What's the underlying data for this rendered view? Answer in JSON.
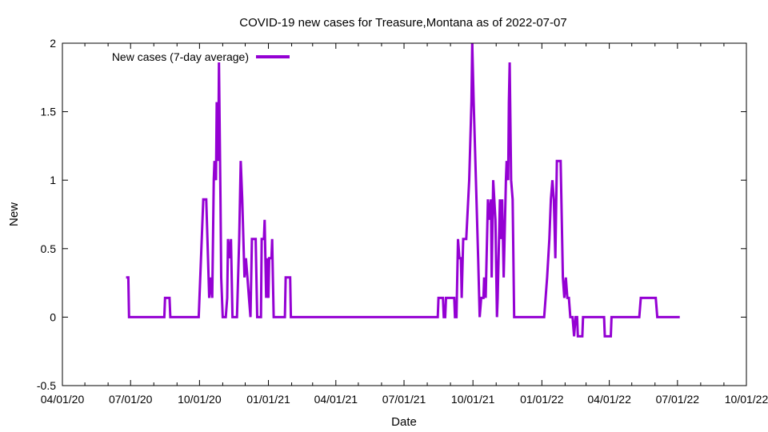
{
  "chart_data": {
    "type": "line",
    "title": "COVID-19 new cases for Treasure,Montana as of 2022-07-07",
    "xlabel": "Date",
    "ylabel": "New",
    "ylim": [
      -0.5,
      2
    ],
    "xlim": [
      "2020-04-01",
      "2022-10-01"
    ],
    "y_ticks": [
      -0.5,
      0,
      0.5,
      1,
      1.5,
      2
    ],
    "y_tick_labels": [
      "-0.5",
      "0",
      "0.5",
      "1",
      "1.5",
      "2"
    ],
    "x_ticks": [
      "2020-04-01",
      "2020-07-01",
      "2020-10-01",
      "2021-01-01",
      "2021-04-01",
      "2021-07-01",
      "2021-10-01",
      "2022-01-01",
      "2022-04-01",
      "2022-07-01",
      "2022-10-01"
    ],
    "x_tick_labels": [
      "04/01/20",
      "07/01/20",
      "10/01/20",
      "01/01/21",
      "04/01/21",
      "07/01/21",
      "10/01/21",
      "01/01/22",
      "04/01/22",
      "07/01/22",
      "10/01/22"
    ],
    "grid": false,
    "legend": {
      "position": "top-left"
    },
    "series": [
      {
        "name": "New cases (7-day average)",
        "color": "#9400d3",
        "points": [
          [
            "2020-06-25",
            0.29
          ],
          [
            "2020-06-28",
            0.29
          ],
          [
            "2020-06-29",
            0
          ],
          [
            "2020-08-15",
            0
          ],
          [
            "2020-08-16",
            0.14
          ],
          [
            "2020-08-22",
            0.14
          ],
          [
            "2020-08-23",
            0
          ],
          [
            "2020-09-30",
            0
          ],
          [
            "2020-10-06",
            0.86
          ],
          [
            "2020-10-10",
            0.86
          ],
          [
            "2020-10-14",
            0.14
          ],
          [
            "2020-10-16",
            0.29
          ],
          [
            "2020-10-18",
            0.14
          ],
          [
            "2020-10-20",
            1.0
          ],
          [
            "2020-10-21",
            1.14
          ],
          [
            "2020-10-23",
            1.0
          ],
          [
            "2020-10-24",
            1.57
          ],
          [
            "2020-10-26",
            1.14
          ],
          [
            "2020-10-27",
            1.86
          ],
          [
            "2020-10-29",
            0.86
          ],
          [
            "2020-10-30",
            0.29
          ],
          [
            "2020-11-01",
            0
          ],
          [
            "2020-11-05",
            0
          ],
          [
            "2020-11-07",
            0.14
          ],
          [
            "2020-11-08",
            0.57
          ],
          [
            "2020-11-11",
            0.43
          ],
          [
            "2020-11-12",
            0.57
          ],
          [
            "2020-11-14",
            0
          ],
          [
            "2020-11-20",
            0
          ],
          [
            "2020-11-23",
            0.57
          ],
          [
            "2020-11-25",
            1.14
          ],
          [
            "2020-11-27",
            0.86
          ],
          [
            "2020-11-30",
            0.29
          ],
          [
            "2020-12-02",
            0.43
          ],
          [
            "2020-12-04",
            0.29
          ],
          [
            "2020-12-06",
            0.14
          ],
          [
            "2020-12-08",
            0
          ],
          [
            "2020-12-10",
            0.57
          ],
          [
            "2020-12-15",
            0.57
          ],
          [
            "2020-12-17",
            0
          ],
          [
            "2020-12-22",
            0
          ],
          [
            "2020-12-23",
            0.57
          ],
          [
            "2020-12-26",
            0.57
          ],
          [
            "2020-12-27",
            0.71
          ],
          [
            "2020-12-29",
            0.14
          ],
          [
            "2020-12-30",
            0.43
          ],
          [
            "2021-01-01",
            0.14
          ],
          [
            "2021-01-02",
            0.43
          ],
          [
            "2021-01-05",
            0.43
          ],
          [
            "2021-01-06",
            0.57
          ],
          [
            "2021-01-07",
            0.29
          ],
          [
            "2021-01-08",
            0
          ],
          [
            "2021-01-23",
            0
          ],
          [
            "2021-01-24",
            0.29
          ],
          [
            "2021-01-30",
            0.29
          ],
          [
            "2021-01-31",
            0
          ],
          [
            "2021-08-15",
            0
          ],
          [
            "2021-08-16",
            0.14
          ],
          [
            "2021-08-22",
            0.14
          ],
          [
            "2021-08-23",
            0
          ],
          [
            "2021-08-25",
            0
          ],
          [
            "2021-08-26",
            0.14
          ],
          [
            "2021-09-06",
            0.14
          ],
          [
            "2021-09-07",
            0
          ],
          [
            "2021-09-09",
            0
          ],
          [
            "2021-09-11",
            0.57
          ],
          [
            "2021-09-13",
            0.43
          ],
          [
            "2021-09-15",
            0.43
          ],
          [
            "2021-09-16",
            0.14
          ],
          [
            "2021-09-18",
            0.57
          ],
          [
            "2021-09-22",
            0.57
          ],
          [
            "2021-09-26",
            1.0
          ],
          [
            "2021-09-29",
            1.57
          ],
          [
            "2021-09-30",
            2.0
          ],
          [
            "2021-10-02",
            1.57
          ],
          [
            "2021-10-05",
            1.0
          ],
          [
            "2021-10-08",
            0.43
          ],
          [
            "2021-10-10",
            0
          ],
          [
            "2021-10-12",
            0.14
          ],
          [
            "2021-10-15",
            0.14
          ],
          [
            "2021-10-16",
            0.29
          ],
          [
            "2021-10-18",
            0.14
          ],
          [
            "2021-10-21",
            0.86
          ],
          [
            "2021-10-23",
            0.71
          ],
          [
            "2021-10-25",
            0.86
          ],
          [
            "2021-10-26",
            0.29
          ],
          [
            "2021-10-28",
            1.0
          ],
          [
            "2021-10-31",
            0.71
          ],
          [
            "2021-11-02",
            0
          ],
          [
            "2021-11-03",
            0.14
          ],
          [
            "2021-11-06",
            0.86
          ],
          [
            "2021-11-08",
            0.57
          ],
          [
            "2021-11-09",
            0.86
          ],
          [
            "2021-11-11",
            0.29
          ],
          [
            "2021-11-14",
            1.0
          ],
          [
            "2021-11-15",
            1.14
          ],
          [
            "2021-11-17",
            1.0
          ],
          [
            "2021-11-18",
            1.57
          ],
          [
            "2021-11-19",
            1.86
          ],
          [
            "2021-11-21",
            1.0
          ],
          [
            "2021-11-23",
            0.86
          ],
          [
            "2021-11-25",
            0
          ],
          [
            "2022-01-04",
            0
          ],
          [
            "2022-01-06",
            0.14
          ],
          [
            "2022-01-08",
            0.29
          ],
          [
            "2022-01-11",
            0.57
          ],
          [
            "2022-01-13",
            0.86
          ],
          [
            "2022-01-15",
            1.0
          ],
          [
            "2022-01-17",
            0.86
          ],
          [
            "2022-01-19",
            0.43
          ],
          [
            "2022-01-21",
            1.14
          ],
          [
            "2022-01-26",
            1.14
          ],
          [
            "2022-01-29",
            0.29
          ],
          [
            "2022-01-31",
            0.14
          ],
          [
            "2022-02-02",
            0.29
          ],
          [
            "2022-02-04",
            0.14
          ],
          [
            "2022-02-06",
            0.14
          ],
          [
            "2022-02-08",
            0
          ],
          [
            "2022-02-11",
            0
          ],
          [
            "2022-02-13",
            -0.14
          ],
          [
            "2022-02-15",
            0
          ],
          [
            "2022-02-17",
            0
          ],
          [
            "2022-02-18",
            -0.14
          ],
          [
            "2022-02-24",
            -0.14
          ],
          [
            "2022-02-25",
            0
          ],
          [
            "2022-03-25",
            0
          ],
          [
            "2022-03-26",
            -0.14
          ],
          [
            "2022-04-03",
            -0.14
          ],
          [
            "2022-04-04",
            0
          ],
          [
            "2022-05-11",
            0
          ],
          [
            "2022-05-13",
            0.14
          ],
          [
            "2022-06-02",
            0.14
          ],
          [
            "2022-06-04",
            0
          ],
          [
            "2022-07-04",
            0
          ]
        ]
      }
    ]
  }
}
